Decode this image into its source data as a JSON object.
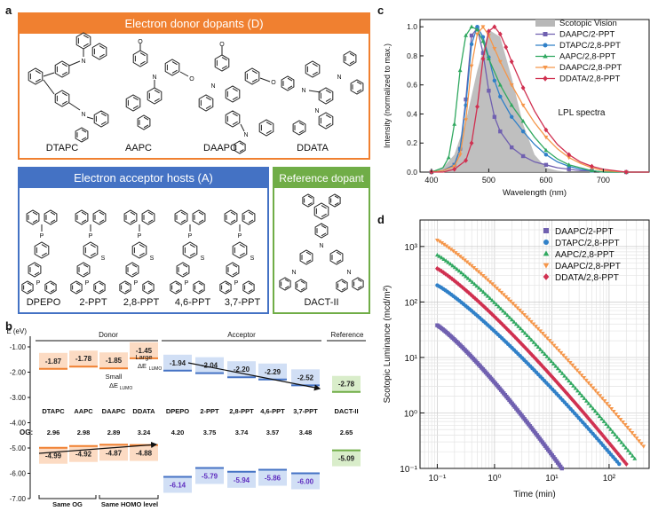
{
  "panel_labels": {
    "a": "a",
    "b": "b",
    "c": "c",
    "d": "d"
  },
  "panel_a": {
    "donor_title": "Electron donor dopants (D)",
    "donors": [
      "DTAPC",
      "AAPC",
      "DAAPC",
      "DDATA"
    ],
    "acceptor_title": "Electron acceptor hosts (A)",
    "acceptors": [
      "DPEPO",
      "2-PPT",
      "2,8-PPT",
      "4,6-PPT",
      "3,7-PPT"
    ],
    "reference_title": "Reference dopant",
    "reference": "DACT-II",
    "colors": {
      "donor": "#f08030",
      "acceptor": "#4472c4",
      "reference": "#70ad47"
    }
  },
  "panel_b": {
    "y_axis_label": "E (eV)",
    "y_ticks": [
      "-1.00",
      "-2.00",
      "-3.00",
      "-4.00",
      "-5.00",
      "-6.00",
      "-7.00"
    ],
    "group_labels": {
      "donor": "Donor",
      "acceptor": "Acceptor",
      "reference": "Reference"
    },
    "annotations": {
      "small": "Small",
      "large": "Large",
      "delta": "ΔE",
      "lumo_sub": "LUMO",
      "same_og": "Same OG",
      "same_homo": "Same HOMO level",
      "og_prefix": "OG:"
    },
    "molecules": [
      {
        "name": "DTAPC",
        "lumo": "-1.87",
        "homo": "-4.99",
        "og": "2.96",
        "group": "donor"
      },
      {
        "name": "AAPC",
        "lumo": "-1.78",
        "homo": "-4.92",
        "og": "2.98",
        "group": "donor"
      },
      {
        "name": "DAAPC",
        "lumo": "-1.85",
        "homo": "-4.87",
        "og": "2.89",
        "group": "donor"
      },
      {
        "name": "DDATA",
        "lumo": "-1.45",
        "homo": "-4.88",
        "og": "3.24",
        "group": "donor"
      },
      {
        "name": "DPEPO",
        "lumo": "-1.94",
        "homo": "-6.14",
        "og": "4.20",
        "group": "acceptor"
      },
      {
        "name": "2-PPT",
        "lumo": "-2.04",
        "homo": "-5.79",
        "og": "3.75",
        "group": "acceptor"
      },
      {
        "name": "2,8-PPT",
        "lumo": "-2.20",
        "homo": "-5.94",
        "og": "3.74",
        "group": "acceptor"
      },
      {
        "name": "4,6-PPT",
        "lumo": "-2.29",
        "homo": "-5.86",
        "og": "3.57",
        "group": "acceptor"
      },
      {
        "name": "3,7-PPT",
        "lumo": "-2.52",
        "homo": "-6.00",
        "og": "3.48",
        "group": "acceptor"
      },
      {
        "name": "DACT-II",
        "lumo": "-2.78",
        "homo": "-5.09",
        "og": "2.65",
        "group": "reference"
      }
    ]
  },
  "chart_data": [
    {
      "type": "line",
      "panel": "c",
      "xlabel": "Wavelength (nm)",
      "ylabel": "Intensity (normalized to max.)",
      "annotation": "LPL spectra",
      "xlim": [
        380,
        780
      ],
      "ylim": [
        0,
        1.05
      ],
      "x_ticks": [
        400,
        500,
        600,
        700
      ],
      "y_ticks": [
        "0.0",
        "0.2",
        "0.4",
        "0.6",
        "0.8",
        "1.0"
      ],
      "legend_position": "top-right",
      "area": {
        "name": "Scotopic Vision",
        "color": "#b8b8b8",
        "x": [
          400,
          420,
          440,
          460,
          480,
          500,
          520,
          540,
          560,
          580,
          600,
          620,
          640
        ],
        "y": [
          0.0,
          0.03,
          0.12,
          0.35,
          0.7,
          0.98,
          0.93,
          0.65,
          0.33,
          0.12,
          0.03,
          0.01,
          0.0
        ]
      },
      "series": [
        {
          "name": "DAAPC/2-PPT",
          "color": "#7060b0",
          "marker": "square",
          "x": [
            400,
            420,
            440,
            450,
            460,
            470,
            480,
            490,
            500,
            510,
            520,
            540,
            560,
            580,
            600,
            620,
            640,
            660,
            680,
            700,
            740,
            780
          ],
          "y": [
            0.0,
            0.01,
            0.05,
            0.16,
            0.5,
            0.94,
            0.99,
            0.82,
            0.56,
            0.38,
            0.28,
            0.17,
            0.11,
            0.07,
            0.05,
            0.03,
            0.02,
            0.01,
            0.01,
            0.0,
            0.0,
            0.0
          ]
        },
        {
          "name": "DTAPC/2,8-PPT",
          "color": "#3080c8",
          "marker": "circle",
          "x": [
            400,
            420,
            440,
            450,
            460,
            470,
            480,
            490,
            500,
            510,
            520,
            540,
            560,
            580,
            600,
            620,
            640,
            660,
            680,
            700,
            740,
            780
          ],
          "y": [
            0.0,
            0.01,
            0.05,
            0.16,
            0.46,
            0.88,
            1.0,
            0.93,
            0.79,
            0.63,
            0.52,
            0.38,
            0.28,
            0.19,
            0.12,
            0.07,
            0.04,
            0.02,
            0.01,
            0.0,
            0.0,
            0.0
          ]
        },
        {
          "name": "AAPC/2,8-PPT",
          "color": "#30a860",
          "marker": "triangle",
          "x": [
            400,
            420,
            430,
            440,
            450,
            460,
            470,
            480,
            490,
            500,
            520,
            540,
            560,
            580,
            600,
            620,
            640,
            660,
            680,
            700,
            740,
            780
          ],
          "y": [
            0.0,
            0.03,
            0.1,
            0.33,
            0.7,
            0.94,
            1.0,
            0.98,
            0.9,
            0.78,
            0.6,
            0.46,
            0.35,
            0.24,
            0.15,
            0.09,
            0.05,
            0.03,
            0.01,
            0.0,
            0.0,
            0.0
          ]
        },
        {
          "name": "DAAPC/2,8-PPT",
          "color": "#f5964a",
          "marker": "triangle-down",
          "x": [
            400,
            420,
            440,
            450,
            460,
            470,
            480,
            490,
            500,
            510,
            520,
            540,
            560,
            580,
            600,
            620,
            640,
            660,
            680,
            700,
            740,
            780
          ],
          "y": [
            0.0,
            0.01,
            0.04,
            0.12,
            0.36,
            0.73,
            0.95,
            1.0,
            0.94,
            0.85,
            0.76,
            0.6,
            0.46,
            0.34,
            0.24,
            0.16,
            0.1,
            0.06,
            0.03,
            0.01,
            0.0,
            0.0
          ]
        },
        {
          "name": "DDATA/2,8-PPT",
          "color": "#d03050",
          "marker": "diamond",
          "x": [
            400,
            420,
            440,
            460,
            470,
            480,
            490,
            500,
            510,
            520,
            530,
            540,
            560,
            580,
            600,
            620,
            640,
            660,
            680,
            700,
            740,
            780
          ],
          "y": [
            0.0,
            0.0,
            0.02,
            0.08,
            0.2,
            0.45,
            0.78,
            0.97,
            1.0,
            0.95,
            0.86,
            0.76,
            0.58,
            0.42,
            0.29,
            0.19,
            0.12,
            0.07,
            0.04,
            0.02,
            0.0,
            0.0
          ]
        }
      ]
    },
    {
      "type": "scatter",
      "panel": "d",
      "xlabel": "Time (min)",
      "ylabel": "Scotopic Luminance (mcd/m²)",
      "x_scale": "log",
      "y_scale": "log",
      "xlim": [
        0.05,
        500
      ],
      "ylim": [
        0.1,
        3000
      ],
      "x_ticks": [
        "10⁻¹",
        "10⁰",
        "10¹",
        "10²"
      ],
      "y_ticks": [
        "10⁻¹",
        "10⁰",
        "10¹",
        "10²",
        "10³"
      ],
      "grid": true,
      "legend_position": "top-right",
      "series": [
        {
          "name": "DAAPC/2-PPT",
          "color": "#7060b0",
          "marker": "square",
          "start": [
            0.1,
            38
          ],
          "end": [
            15,
            0.1
          ],
          "exponent": 1.15
        },
        {
          "name": "DTAPC/2,8-PPT",
          "color": "#3080c8",
          "marker": "circle",
          "start": [
            0.1,
            200
          ],
          "end": [
            150,
            0.12
          ],
          "exponent": 1.0
        },
        {
          "name": "AAPC/2,8-PPT",
          "color": "#30a860",
          "marker": "triangle",
          "start": [
            0.1,
            700
          ],
          "end": [
            280,
            0.15
          ],
          "exponent": 1.0
        },
        {
          "name": "DAAPC/2,8-PPT",
          "color": "#f5964a",
          "marker": "triangle-down",
          "start": [
            0.1,
            1300
          ],
          "end": [
            400,
            0.25
          ],
          "exponent": 1.0
        },
        {
          "name": "DDATA/2,8-PPT",
          "color": "#d03050",
          "marker": "diamond",
          "start": [
            0.1,
            400
          ],
          "end": [
            200,
            0.12
          ],
          "exponent": 1.05
        }
      ]
    }
  ]
}
